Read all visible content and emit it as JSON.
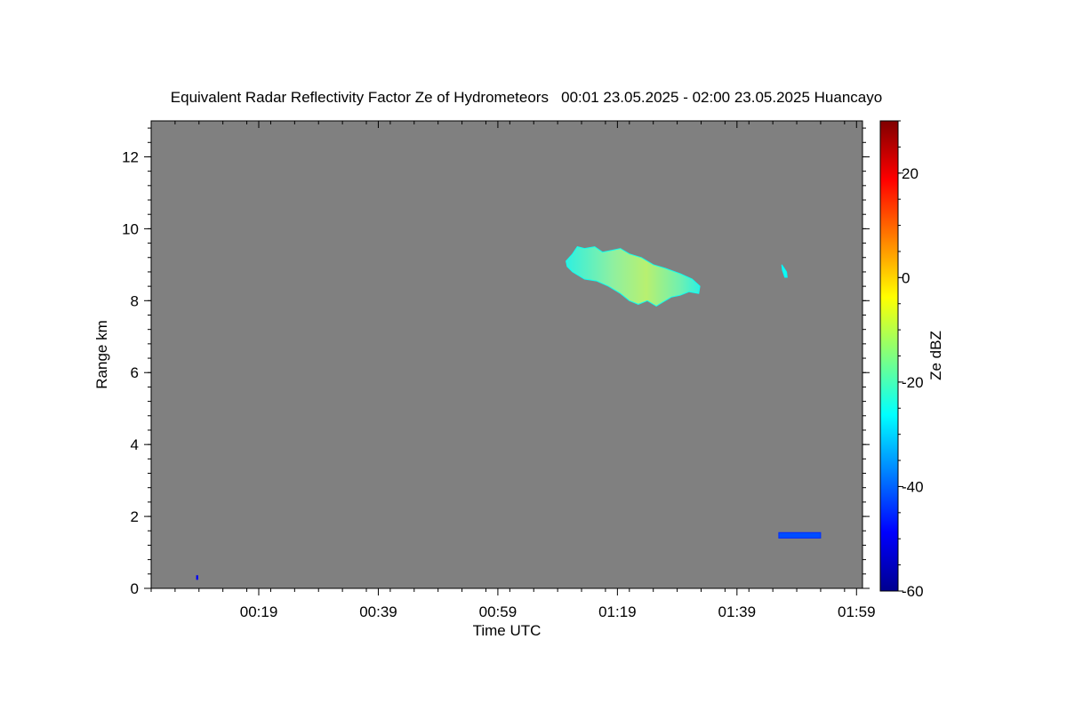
{
  "chart_data": {
    "type": "heatmap",
    "title": "Equivalent Radar Reflectivity Factor Ze of Hydrometeors   00:01 23.05.2025 - 02:00 23.05.2025 Huancayo",
    "xlabel": "Time UTC",
    "ylabel": "Range km",
    "x_tick_labels": [
      "00:19",
      "00:39",
      "00:59",
      "01:19",
      "01:39",
      "01:59"
    ],
    "x_tick_minutes": [
      19,
      39,
      59,
      79,
      99,
      119
    ],
    "xlim_minutes": [
      1,
      120
    ],
    "y_ticks": [
      0,
      2,
      4,
      6,
      8,
      10,
      12
    ],
    "ylim": [
      0,
      13
    ],
    "background_color": "#808080",
    "colorbar": {
      "label": "Ze dBZ",
      "min": -60,
      "max": 30,
      "ticks": [
        -60,
        -40,
        -20,
        0,
        20
      ],
      "tick_labels": [
        "-60",
        "-40",
        "-20",
        "0",
        "20"
      ]
    },
    "echoes": [
      {
        "name": "upper cloud layer",
        "outline": [
          [
            70.4,
            9.1
          ],
          [
            71.5,
            9.3
          ],
          [
            72.3,
            9.5
          ],
          [
            73.5,
            9.45
          ],
          [
            75.2,
            9.5
          ],
          [
            76.5,
            9.35
          ],
          [
            78,
            9.4
          ],
          [
            79.5,
            9.45
          ],
          [
            81,
            9.3
          ],
          [
            83,
            9.2
          ],
          [
            85,
            9.0
          ],
          [
            87,
            8.9
          ],
          [
            89.5,
            8.75
          ],
          [
            91.5,
            8.6
          ],
          [
            92.8,
            8.4
          ],
          [
            92.6,
            8.2
          ],
          [
            91,
            8.25
          ],
          [
            89.5,
            8.15
          ],
          [
            88,
            8.1
          ],
          [
            86.5,
            7.95
          ],
          [
            85.5,
            7.85
          ],
          [
            84,
            8.0
          ],
          [
            82.5,
            7.9
          ],
          [
            81,
            8.0
          ],
          [
            79.5,
            8.2
          ],
          [
            77.5,
            8.4
          ],
          [
            75.5,
            8.55
          ],
          [
            73.5,
            8.6
          ],
          [
            71.5,
            8.8
          ],
          [
            70.6,
            8.95
          ]
        ],
        "core_ze_dbz": -10,
        "edge_ze_dbz": -25
      },
      {
        "name": "small echo",
        "outline": [
          [
            106.5,
            9.0
          ],
          [
            107.3,
            8.8
          ],
          [
            107.4,
            8.65
          ],
          [
            107,
            8.65
          ],
          [
            106.6,
            8.85
          ]
        ],
        "core_ze_dbz": -25,
        "edge_ze_dbz": -27
      },
      {
        "name": "low echo",
        "outline": [
          [
            106,
            1.55
          ],
          [
            113,
            1.55
          ],
          [
            113,
            1.4
          ],
          [
            106,
            1.4
          ]
        ],
        "core_ze_dbz": -42,
        "edge_ze_dbz": -45
      },
      {
        "name": "tiny speck",
        "outline": [
          [
            8.6,
            0.35
          ],
          [
            8.8,
            0.35
          ],
          [
            8.8,
            0.25
          ],
          [
            8.6,
            0.25
          ]
        ],
        "core_ze_dbz": -50,
        "edge_ze_dbz": -50
      }
    ]
  }
}
